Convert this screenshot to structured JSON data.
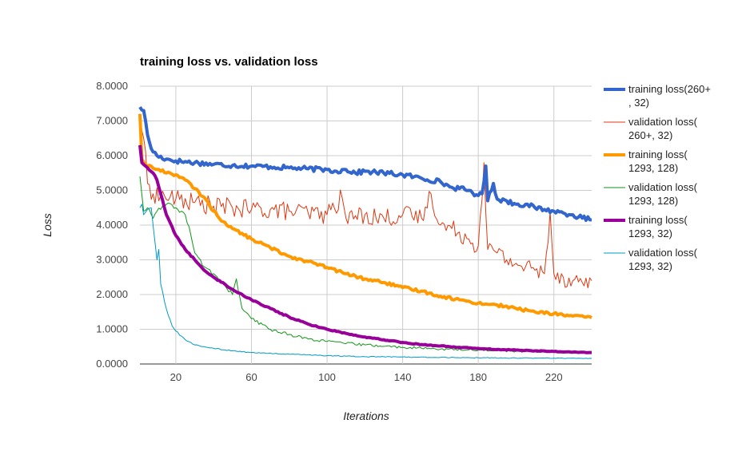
{
  "chart_data": {
    "type": "line",
    "title": "training loss vs. validation loss",
    "xlabel": "Iterations",
    "ylabel": "Loss",
    "xlim": [
      1,
      240
    ],
    "ylim": [
      0,
      8
    ],
    "x_ticks": [
      20,
      60,
      100,
      140,
      180,
      220
    ],
    "y_ticks": [
      "0.0000",
      "1.0000",
      "2.0000",
      "3.0000",
      "4.0000",
      "5.0000",
      "6.0000",
      "7.0000",
      "8.0000"
    ],
    "grid": true,
    "legend_position": "right",
    "series": [
      {
        "name": "training loss(260+, 32)",
        "legend_lines": [
          "training loss(260+",
          ", 32)"
        ],
        "color": "#3366cc",
        "width": 4,
        "points": [
          [
            1,
            7.4
          ],
          [
            3,
            7.3
          ],
          [
            5,
            6.6
          ],
          [
            7,
            6.2
          ],
          [
            10,
            6.0
          ],
          [
            15,
            5.9
          ],
          [
            20,
            5.85
          ],
          [
            30,
            5.8
          ],
          [
            40,
            5.75
          ],
          [
            50,
            5.72
          ],
          [
            60,
            5.7
          ],
          [
            70,
            5.68
          ],
          [
            80,
            5.65
          ],
          [
            90,
            5.62
          ],
          [
            100,
            5.6
          ],
          [
            105,
            5.55
          ],
          [
            110,
            5.6
          ],
          [
            115,
            5.5
          ],
          [
            120,
            5.55
          ],
          [
            130,
            5.5
          ],
          [
            140,
            5.45
          ],
          [
            150,
            5.35
          ],
          [
            160,
            5.25
          ],
          [
            165,
            5.1
          ],
          [
            170,
            5.05
          ],
          [
            175,
            5.0
          ],
          [
            180,
            4.85
          ],
          [
            182,
            4.9
          ],
          [
            184,
            5.7
          ],
          [
            185,
            4.7
          ],
          [
            188,
            5.2
          ],
          [
            190,
            4.75
          ],
          [
            195,
            4.7
          ],
          [
            200,
            4.6
          ],
          [
            205,
            4.6
          ],
          [
            210,
            4.5
          ],
          [
            215,
            4.45
          ],
          [
            220,
            4.4
          ],
          [
            225,
            4.35
          ],
          [
            230,
            4.3
          ],
          [
            235,
            4.2
          ],
          [
            240,
            4.15
          ]
        ],
        "noise": 0.07
      },
      {
        "name": "validation loss(260+, 32)",
        "legend_lines": [
          "validation loss(",
          "260+, 32)"
        ],
        "color": "#dc3912",
        "width": 1,
        "points": [
          [
            1,
            7.2
          ],
          [
            3,
            6.5
          ],
          [
            5,
            5.2
          ],
          [
            8,
            4.9
          ],
          [
            12,
            4.85
          ],
          [
            20,
            4.75
          ],
          [
            30,
            4.65
          ],
          [
            40,
            4.55
          ],
          [
            50,
            4.5
          ],
          [
            60,
            4.45
          ],
          [
            70,
            4.45
          ],
          [
            80,
            4.4
          ],
          [
            90,
            4.35
          ],
          [
            100,
            4.3
          ],
          [
            108,
            4.8
          ],
          [
            110,
            4.2
          ],
          [
            120,
            4.3
          ],
          [
            130,
            4.2
          ],
          [
            140,
            4.3
          ],
          [
            150,
            4.2
          ],
          [
            155,
            4.9
          ],
          [
            160,
            4.0
          ],
          [
            170,
            3.8
          ],
          [
            175,
            3.6
          ],
          [
            180,
            3.4
          ],
          [
            183,
            5.8
          ],
          [
            185,
            3.3
          ],
          [
            190,
            3.2
          ],
          [
            195,
            3.0
          ],
          [
            200,
            2.9
          ],
          [
            205,
            2.8
          ],
          [
            210,
            2.7
          ],
          [
            215,
            2.6
          ],
          [
            218,
            4.4
          ],
          [
            220,
            2.6
          ],
          [
            225,
            2.5
          ],
          [
            230,
            2.4
          ],
          [
            235,
            2.35
          ],
          [
            240,
            2.4
          ]
        ],
        "noise": 0.28
      },
      {
        "name": "training loss(1293, 128)",
        "legend_lines": [
          "training loss(",
          "1293, 128)"
        ],
        "color": "#ff9900",
        "width": 4,
        "points": [
          [
            1,
            7.2
          ],
          [
            2,
            5.9
          ],
          [
            4,
            5.75
          ],
          [
            10,
            5.6
          ],
          [
            20,
            5.45
          ],
          [
            25,
            5.3
          ],
          [
            30,
            5.05
          ],
          [
            35,
            4.8
          ],
          [
            40,
            4.4
          ],
          [
            45,
            4.1
          ],
          [
            50,
            3.9
          ],
          [
            60,
            3.6
          ],
          [
            70,
            3.35
          ],
          [
            80,
            3.1
          ],
          [
            90,
            2.95
          ],
          [
            100,
            2.78
          ],
          [
            110,
            2.6
          ],
          [
            120,
            2.45
          ],
          [
            130,
            2.35
          ],
          [
            140,
            2.2
          ],
          [
            150,
            2.1
          ],
          [
            160,
            1.95
          ],
          [
            170,
            1.85
          ],
          [
            180,
            1.75
          ],
          [
            190,
            1.7
          ],
          [
            200,
            1.6
          ],
          [
            210,
            1.5
          ],
          [
            220,
            1.45
          ],
          [
            230,
            1.38
          ],
          [
            240,
            1.33
          ]
        ],
        "noise": 0.04
      },
      {
        "name": "validation loss(1293, 128)",
        "legend_lines": [
          "validation loss(",
          "1293, 128)"
        ],
        "color": "#109618",
        "width": 1,
        "points": [
          [
            1,
            5.4
          ],
          [
            3,
            4.4
          ],
          [
            5,
            4.5
          ],
          [
            8,
            4.2
          ],
          [
            10,
            4.4
          ],
          [
            15,
            4.6
          ],
          [
            20,
            4.5
          ],
          [
            25,
            4.3
          ],
          [
            28,
            3.7
          ],
          [
            30,
            3.2
          ],
          [
            35,
            2.8
          ],
          [
            40,
            2.6
          ],
          [
            45,
            2.3
          ],
          [
            50,
            2.0
          ],
          [
            52,
            2.45
          ],
          [
            55,
            1.6
          ],
          [
            60,
            1.3
          ],
          [
            70,
            1.0
          ],
          [
            80,
            0.85
          ],
          [
            90,
            0.72
          ],
          [
            100,
            0.65
          ],
          [
            120,
            0.55
          ],
          [
            140,
            0.48
          ],
          [
            160,
            0.43
          ],
          [
            180,
            0.4
          ],
          [
            200,
            0.37
          ],
          [
            220,
            0.35
          ],
          [
            240,
            0.33
          ]
        ],
        "noise": 0.06
      },
      {
        "name": "training loss(1293, 32)",
        "legend_lines": [
          "training loss(",
          "1293, 32)"
        ],
        "color": "#990099",
        "width": 4,
        "points": [
          [
            1,
            6.3
          ],
          [
            2,
            5.8
          ],
          [
            5,
            5.65
          ],
          [
            8,
            5.5
          ],
          [
            10,
            5.3
          ],
          [
            12,
            4.9
          ],
          [
            15,
            4.3
          ],
          [
            20,
            3.7
          ],
          [
            25,
            3.3
          ],
          [
            30,
            3.0
          ],
          [
            35,
            2.7
          ],
          [
            40,
            2.5
          ],
          [
            50,
            2.15
          ],
          [
            60,
            1.85
          ],
          [
            70,
            1.6
          ],
          [
            80,
            1.35
          ],
          [
            90,
            1.15
          ],
          [
            100,
            1.0
          ],
          [
            110,
            0.88
          ],
          [
            120,
            0.78
          ],
          [
            130,
            0.7
          ],
          [
            140,
            0.62
          ],
          [
            150,
            0.56
          ],
          [
            160,
            0.52
          ],
          [
            170,
            0.48
          ],
          [
            180,
            0.45
          ],
          [
            190,
            0.42
          ],
          [
            200,
            0.4
          ],
          [
            210,
            0.38
          ],
          [
            220,
            0.36
          ],
          [
            230,
            0.34
          ],
          [
            240,
            0.33
          ]
        ],
        "noise": 0.02
      },
      {
        "name": "validation loss(1293, 32)",
        "legend_lines": [
          "validation loss(",
          "1293, 32)"
        ],
        "color": "#0099c6",
        "width": 1,
        "points": [
          [
            1,
            4.5
          ],
          [
            2,
            4.6
          ],
          [
            3,
            4.3
          ],
          [
            5,
            4.45
          ],
          [
            7,
            4.5
          ],
          [
            9,
            3.5
          ],
          [
            10,
            3.0
          ],
          [
            11,
            3.3
          ],
          [
            12,
            2.3
          ],
          [
            14,
            1.8
          ],
          [
            16,
            1.4
          ],
          [
            18,
            1.1
          ],
          [
            20,
            0.95
          ],
          [
            25,
            0.7
          ],
          [
            30,
            0.55
          ],
          [
            40,
            0.45
          ],
          [
            50,
            0.38
          ],
          [
            60,
            0.33
          ],
          [
            80,
            0.28
          ],
          [
            100,
            0.24
          ],
          [
            120,
            0.21
          ],
          [
            140,
            0.2
          ],
          [
            160,
            0.19
          ],
          [
            180,
            0.18
          ],
          [
            200,
            0.17
          ],
          [
            220,
            0.17
          ],
          [
            240,
            0.16
          ]
        ],
        "noise": 0.03
      }
    ]
  }
}
